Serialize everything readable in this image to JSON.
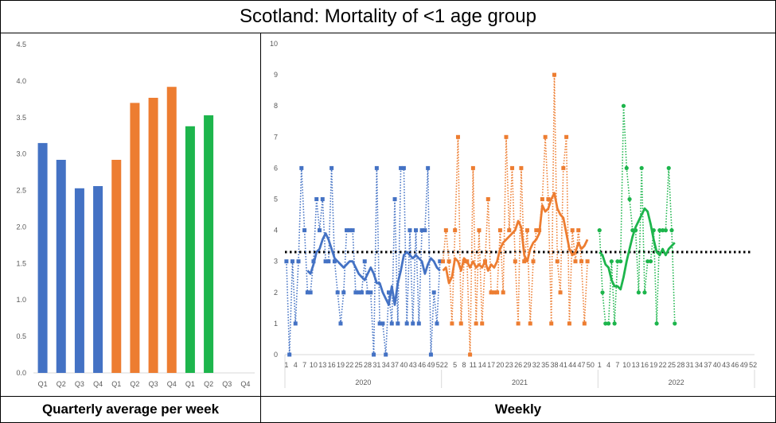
{
  "title": "Scotland: Mortality of <1 age group",
  "footer": {
    "left": "Quarterly average per week",
    "right": "Weekly"
  },
  "colors": {
    "2020": "#4472C4",
    "2021": "#ED7D31",
    "2022": "#1DB54C",
    "average_line": "#000000",
    "axis": "#D9D9D9",
    "tick_text": "#595959"
  },
  "chart_data": [
    {
      "type": "bar",
      "subtitle": "Quarterly average per week",
      "categories": [
        "Q1",
        "Q2",
        "Q3",
        "Q4",
        "Q1",
        "Q2",
        "Q3",
        "Q4",
        "Q1",
        "Q2",
        "Q3",
        "Q4"
      ],
      "groups": [
        "2020",
        "2020",
        "2020",
        "2020",
        "2021",
        "2021",
        "2021",
        "2021",
        "2022",
        "2022",
        "2022",
        "2022"
      ],
      "values": [
        3.15,
        2.92,
        2.53,
        2.56,
        2.92,
        3.7,
        3.77,
        3.92,
        3.38,
        3.53,
        null,
        null
      ],
      "ylim": [
        0,
        4.5
      ],
      "yticks": [
        "0.0",
        "0.5",
        "1.0",
        "1.5",
        "2.0",
        "2.5",
        "3.0",
        "3.5",
        "4.0",
        "4.5"
      ],
      "grid": false
    },
    {
      "type": "line",
      "subtitle": "Weekly",
      "ylim": [
        0,
        10
      ],
      "yticks": [
        "0",
        "1",
        "2",
        "3",
        "4",
        "5",
        "6",
        "7",
        "8",
        "9",
        "10"
      ],
      "x_tick_labels": [
        "1",
        "4",
        "7",
        "10",
        "13",
        "16",
        "19",
        "22",
        "25",
        "28",
        "31",
        "34",
        "37",
        "40",
        "43",
        "46",
        "49",
        "52"
      ],
      "year_groups": [
        {
          "year": "2020",
          "x_tick_labels": [
            "1",
            "4",
            "7",
            "10",
            "13",
            "16",
            "19",
            "22",
            "25",
            "28",
            "31",
            "34",
            "37",
            "40",
            "43",
            "46",
            "49",
            "52"
          ]
        },
        {
          "year": "2021",
          "x_tick_labels": [
            "2",
            "5",
            "8",
            "11",
            "14",
            "17",
            "20",
            "23",
            "26",
            "29",
            "32",
            "35",
            "38",
            "41",
            "44",
            "47",
            "50"
          ]
        },
        {
          "year": "2022",
          "x_tick_labels": [
            "1",
            "4",
            "7",
            "10",
            "13",
            "16",
            "19",
            "22",
            "25",
            "28",
            "31",
            "34",
            "37",
            "40",
            "43",
            "46",
            "49",
            "52"
          ]
        }
      ],
      "average_line": 3.3,
      "series": [
        {
          "year": "2020",
          "style": "weekly-dotted-markers",
          "values": [
            3,
            0,
            3,
            1,
            3,
            6,
            4,
            2,
            2,
            3,
            5,
            4,
            5,
            3,
            3,
            6,
            3,
            2,
            1,
            2,
            4,
            4,
            4,
            2,
            2,
            2,
            3,
            2,
            2,
            0,
            6,
            1,
            1,
            0,
            2,
            1,
            5,
            1,
            6,
            6,
            1,
            4,
            1,
            4,
            1,
            4,
            4,
            6,
            0,
            2,
            1,
            3
          ]
        },
        {
          "year": "2020",
          "style": "rolling-average",
          "values": [
            null,
            null,
            null,
            null,
            null,
            null,
            null,
            2.7,
            2.6,
            2.9,
            3.3,
            3.4,
            3.7,
            3.9,
            3.7,
            3.4,
            3.1,
            3.0,
            2.9,
            2.8,
            2.9,
            3.0,
            3.0,
            2.8,
            2.6,
            2.5,
            2.4,
            2.6,
            2.8,
            2.6,
            2.3,
            2.3,
            2.0,
            1.8,
            1.6,
            2.2,
            1.6,
            2.3,
            2.7,
            3.2,
            3.3,
            3.2,
            3.1,
            3.2,
            3.1,
            3.0,
            2.6,
            2.9,
            3.1,
            3.0,
            2.8,
            2.7
          ]
        },
        {
          "year": "2021",
          "style": "weekly-dotted-markers",
          "values": [
            3,
            4,
            3,
            1,
            4,
            7,
            1,
            3,
            3,
            0,
            6,
            1,
            4,
            1,
            3,
            5,
            2,
            2,
            2,
            4,
            2,
            7,
            4,
            6,
            3,
            1,
            6,
            3,
            4,
            1,
            3,
            4,
            4,
            5,
            7,
            5,
            1,
            9,
            3,
            2,
            6,
            7,
            1,
            4,
            3,
            4,
            3,
            1,
            3
          ]
        },
        {
          "year": "2021",
          "style": "rolling-average",
          "values": [
            2.7,
            2.8,
            2.3,
            2.5,
            3.1,
            3.0,
            2.7,
            3.1,
            3.0,
            2.8,
            3.0,
            2.8,
            2.9,
            2.8,
            3.0,
            2.7,
            2.9,
            2.8,
            3.0,
            3.4,
            3.6,
            3.7,
            3.8,
            3.9,
            4.0,
            4.3,
            4.1,
            3.2,
            3.0,
            3.4,
            3.6,
            3.7,
            3.9,
            4.8,
            4.6,
            4.7,
            5.0,
            5.2,
            4.7,
            4.5,
            4.4,
            3.9,
            3.4,
            3.2,
            3.3,
            3.6,
            3.4,
            3.5,
            3.7
          ]
        },
        {
          "year": "2022",
          "style": "weekly-dotted-markers",
          "values": [
            4,
            2,
            1,
            1,
            3,
            1,
            3,
            3,
            8,
            6,
            5,
            4,
            4,
            2,
            6,
            2,
            3,
            3,
            4,
            1,
            4,
            4,
            4,
            6,
            4,
            1
          ]
        },
        {
          "year": "2022",
          "style": "rolling-average",
          "values": [
            3.3,
            3.2,
            2.9,
            2.8,
            2.4,
            2.2,
            2.2,
            2.1,
            2.5,
            3.0,
            3.4,
            3.8,
            4.1,
            4.3,
            4.5,
            4.7,
            4.6,
            4.2,
            3.7,
            3.3,
            3.2,
            3.4,
            3.2,
            3.4,
            3.5,
            3.6
          ]
        }
      ],
      "grid": false
    }
  ]
}
